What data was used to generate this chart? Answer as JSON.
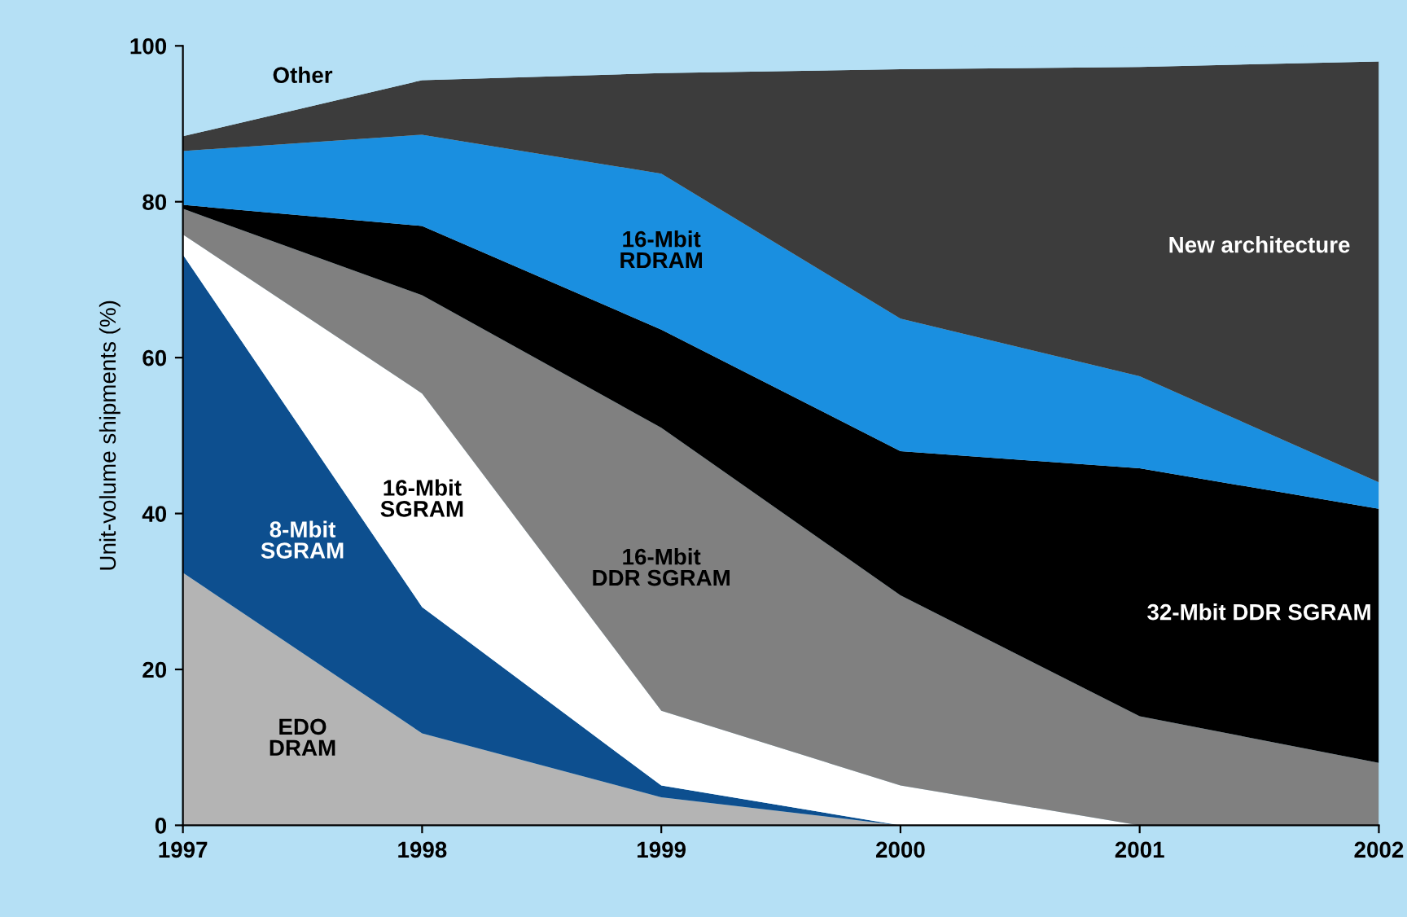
{
  "chart_data": {
    "type": "area",
    "stacked": true,
    "ylabel": "Unit-volume shipments (%)",
    "x": [
      1997,
      1998,
      1999,
      2000,
      2001,
      2002
    ],
    "xlim": [
      1997,
      2002
    ],
    "xticks": [
      1997,
      1998,
      1999,
      2000,
      2001,
      2002
    ],
    "ylim": [
      0,
      100
    ],
    "yticks": [
      0,
      20,
      40,
      60,
      80,
      100
    ],
    "grid": false,
    "legend": false,
    "series": [
      {
        "name": "EDO DRAM",
        "color": "#b4b4b4",
        "values": [
          32.4,
          11.8,
          3.6,
          0,
          0,
          0
        ]
      },
      {
        "name": "8-Mbit SGRAM",
        "color": "#0d4f8f",
        "values": [
          40.8,
          16.2,
          1.5,
          0,
          0,
          0
        ]
      },
      {
        "name": "16-Mbit SGRAM",
        "color": "#ffffff",
        "values": [
          2.6,
          27.4,
          9.6,
          5.1,
          0,
          0
        ]
      },
      {
        "name": "16-Mbit DDR SGRAM",
        "color": "#808080",
        "values": [
          3.3,
          12.6,
          36.3,
          24.4,
          14,
          8
        ]
      },
      {
        "name": "32-Mbit DDR SGRAM",
        "color": "#000000",
        "values": [
          0.5,
          8.9,
          12.6,
          18.5,
          31.8,
          32.6
        ]
      },
      {
        "name": "16-Mbit RDRAM",
        "color": "#1a8fe0",
        "values": [
          6.9,
          11.7,
          20,
          17,
          11.8,
          3.4
        ]
      },
      {
        "name": "New architecture",
        "color": "#3c3c3c",
        "values": [
          1.9,
          7,
          12.9,
          32,
          39.7,
          54
        ]
      },
      {
        "name": "Other",
        "color": "#b5e0f5",
        "values": [
          11.6,
          4.4,
          3.5,
          3,
          2.5,
          2
        ]
      }
    ]
  }
}
